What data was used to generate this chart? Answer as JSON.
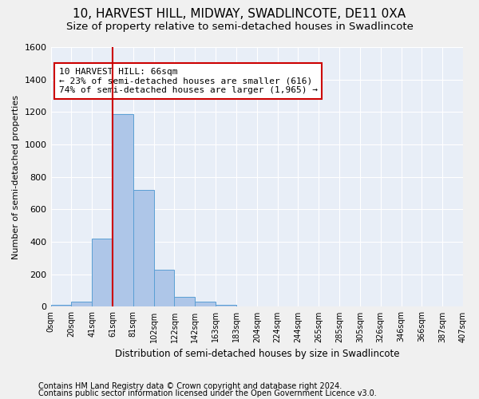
{
  "title": "10, HARVEST HILL, MIDWAY, SWADLINCOTE, DE11 0XA",
  "subtitle": "Size of property relative to semi-detached houses in Swadlincote",
  "xlabel": "Distribution of semi-detached houses by size in Swadlincote",
  "ylabel": "Number of semi-detached properties",
  "footnote1": "Contains HM Land Registry data © Crown copyright and database right 2024.",
  "footnote2": "Contains public sector information licensed under the Open Government Licence v3.0.",
  "bin_labels": [
    "0sqm",
    "20sqm",
    "41sqm",
    "61sqm",
    "81sqm",
    "102sqm",
    "122sqm",
    "142sqm",
    "163sqm",
    "183sqm",
    "204sqm",
    "224sqm",
    "244sqm",
    "265sqm",
    "285sqm",
    "305sqm",
    "326sqm",
    "346sqm",
    "366sqm",
    "387sqm",
    "407sqm"
  ],
  "bar_values": [
    10,
    30,
    420,
    1185,
    720,
    230,
    60,
    30,
    10,
    0,
    0,
    0,
    0,
    0,
    0,
    0,
    0,
    0,
    0,
    0
  ],
  "bar_color": "#aec6e8",
  "bar_edge_color": "#5a9fd4",
  "property_bin": 3,
  "vline_color": "#cc0000",
  "annotation_line1": "10 HARVEST HILL: 66sqm",
  "annotation_line2": "← 23% of semi-detached houses are smaller (616)",
  "annotation_line3": "74% of semi-detached houses are larger (1,965) →",
  "annotation_box_color": "#cc0000",
  "ylim": [
    0,
    1600
  ],
  "yticks": [
    0,
    200,
    400,
    600,
    800,
    1000,
    1200,
    1400,
    1600
  ],
  "bg_color": "#e8eef7",
  "fig_color": "#f0f0f0",
  "grid_color": "#ffffff",
  "title_fontsize": 11,
  "subtitle_fontsize": 9.5,
  "footnote_fontsize": 7
}
